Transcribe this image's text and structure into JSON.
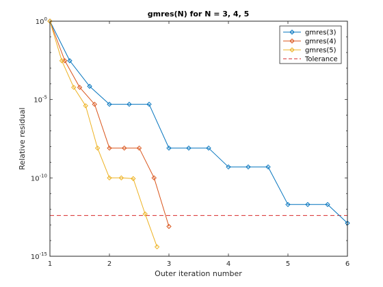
{
  "chart_data": {
    "type": "line",
    "title": "gmres(N) for N = 3, 4, 5",
    "xlabel": "Outer iteration number",
    "ylabel": "Relative residual",
    "xlim": [
      1,
      6
    ],
    "ylim_log10": [
      -15,
      0
    ],
    "yscale": "log",
    "grid": false,
    "legend_position": "top-right",
    "x_ticks": [
      "1",
      "2",
      "3",
      "4",
      "5",
      "6"
    ],
    "y_ticks": [
      {
        "base": "10",
        "exp": "0",
        "log10": 0
      },
      {
        "base": "10",
        "exp": "-5",
        "log10": -5
      },
      {
        "base": "10",
        "exp": "-10",
        "log10": -10
      },
      {
        "base": "10",
        "exp": "-15",
        "log10": -15
      }
    ],
    "series": [
      {
        "name": "gmres(3)",
        "color": "#0072bd",
        "x": [
          1,
          1.333,
          1.667,
          2,
          2.333,
          2.667,
          3,
          3.333,
          3.667,
          4,
          4.333,
          4.667,
          5,
          5.333,
          5.667,
          6
        ],
        "y": [
          1,
          0.003,
          7e-05,
          5e-06,
          5e-06,
          5e-06,
          8e-09,
          8e-09,
          8e-09,
          5e-10,
          5e-10,
          5e-10,
          2e-12,
          2e-12,
          2e-12,
          1.3e-13
        ]
      },
      {
        "name": "gmres(4)",
        "color": "#d95319",
        "x": [
          1,
          1.25,
          1.5,
          1.75,
          2,
          2.25,
          2.5,
          2.75,
          3
        ],
        "y": [
          1,
          0.003,
          6e-05,
          5e-06,
          8e-09,
          8e-09,
          8e-09,
          1e-10,
          8e-14
        ]
      },
      {
        "name": "gmres(5)",
        "color": "#edb120",
        "x": [
          1,
          1.2,
          1.4,
          1.6,
          1.8,
          2,
          2.2,
          2.4,
          2.6,
          2.8
        ],
        "y": [
          1,
          0.003,
          6e-05,
          4e-06,
          8e-09,
          1e-10,
          1e-10,
          9e-11,
          5e-13,
          4e-15
        ]
      }
    ],
    "reference_line": {
      "name": "Tolerance",
      "value": 4e-13,
      "color": "#d62728",
      "style": "dashed"
    }
  }
}
